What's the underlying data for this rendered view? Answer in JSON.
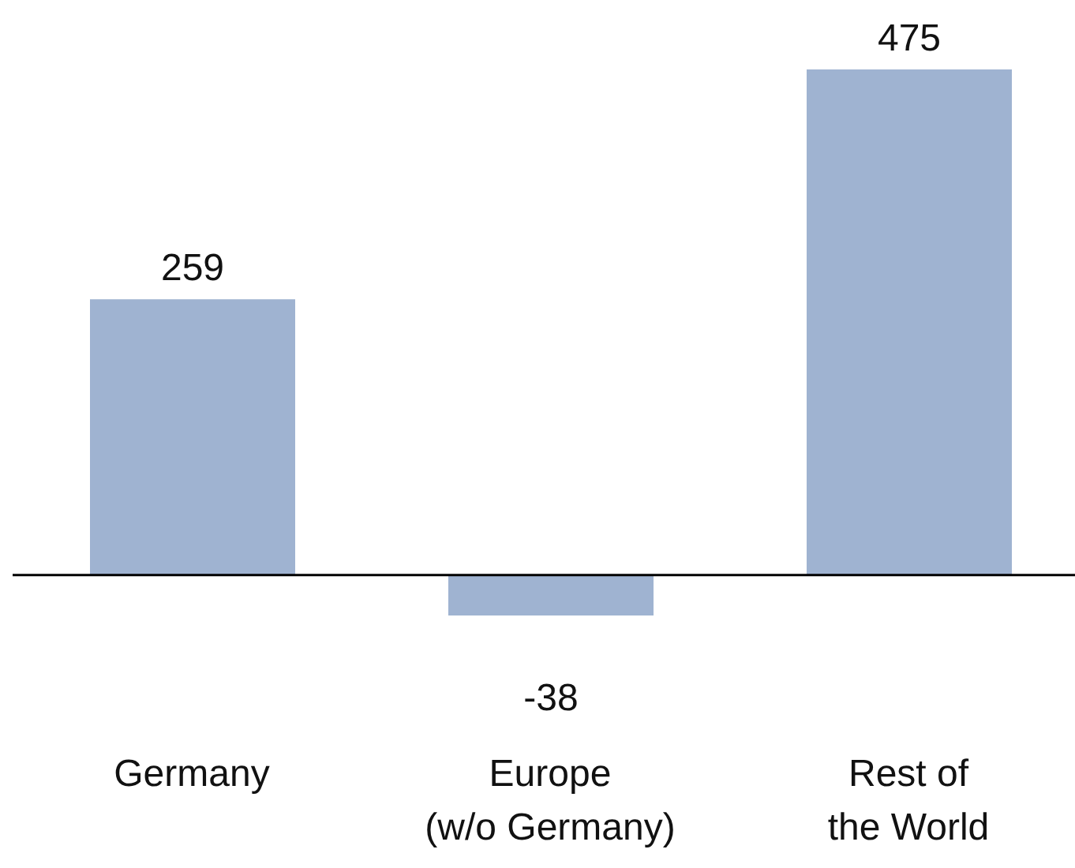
{
  "chart_data": {
    "type": "bar",
    "categories": [
      "Germany",
      "Europe\n(w/o Germany)",
      "Rest of\nthe World"
    ],
    "values": [
      259,
      -38,
      475
    ],
    "color": "#9fb3d1",
    "data_labels": true
  }
}
